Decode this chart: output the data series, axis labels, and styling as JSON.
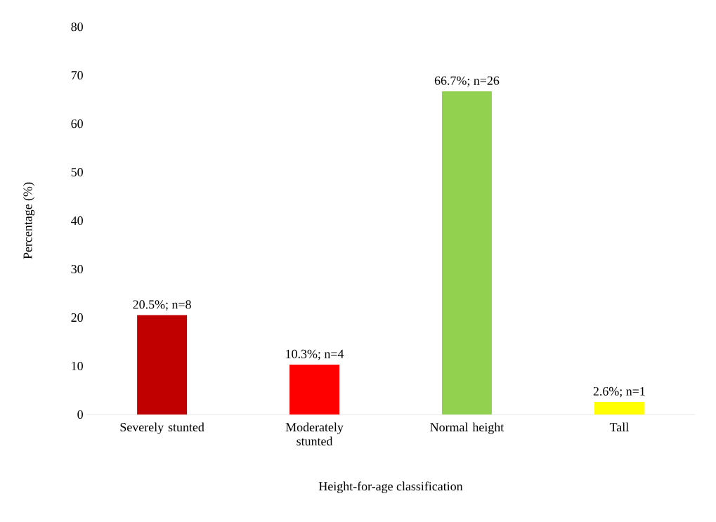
{
  "chart_data": {
    "type": "bar",
    "xlabel": "Height-for-age classification",
    "ylabel": "Percentage (%)",
    "categories": [
      "Severely stunted",
      "Moderately stunted",
      "Normal height",
      "Tall"
    ],
    "values": [
      20.5,
      10.3,
      66.7,
      2.6
    ],
    "colors": [
      "#c00000",
      "#ff0000",
      "#92d050",
      "#ffff00"
    ],
    "value_labels": [
      "20.5%; n=8",
      "10.3%; n=4",
      "66.7%; n=26",
      "2.6%; n=1"
    ],
    "ylim": [
      0,
      80
    ],
    "yticks": [
      0,
      10,
      20,
      30,
      40,
      50,
      60,
      70,
      80
    ]
  }
}
